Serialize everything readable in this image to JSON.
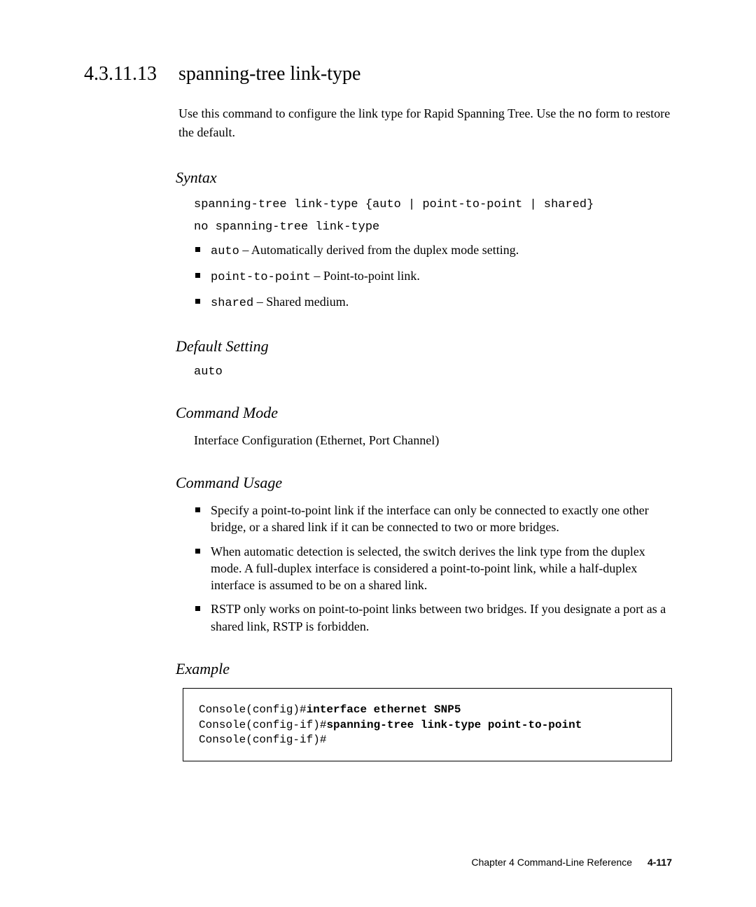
{
  "heading": {
    "number": "4.3.11.13",
    "title": "spanning-tree link-type"
  },
  "intro": {
    "pre": "Use this command to configure the link type for Rapid Spanning Tree. Use the ",
    "code": "no",
    "post": " form to restore the default."
  },
  "syntax": {
    "label": "Syntax",
    "line1_pre": "spanning-tree link-type",
    "line1_post": " {auto | point-to-point | shared}",
    "line2": "no spanning-tree link-type",
    "items": {
      "i0_code": "auto",
      "i0_text": " – Automatically derived from the duplex mode setting.",
      "i1_code": "point-to-point",
      "i1_text": " – Point-to-point link.",
      "i2_code": "shared",
      "i2_text": " – Shared medium."
    }
  },
  "default": {
    "label": "Default Setting",
    "value": "auto"
  },
  "mode": {
    "label": "Command Mode",
    "text": "Interface Configuration (Ethernet, Port Channel)"
  },
  "usage": {
    "label": "Command Usage",
    "u0": "Specify a point-to-point link if the interface can only be connected to exactly one other bridge, or a shared link if it can be connected to two or more bridges.",
    "u1": "When automatic detection is selected, the switch derives the link type from the duplex mode. A full-duplex interface is considered a point-to-point link, while a half-duplex interface is assumed to be on a shared link.",
    "u2": "RSTP only works on point-to-point links between two bridges. If you designate a port as a shared link, RSTP is forbidden."
  },
  "example": {
    "label": "Example",
    "l1_prompt": "Console(config)#",
    "l1_cmd": "interface ethernet SNP5",
    "l2_prompt": "Console(config-if)#",
    "l2_cmd": "spanning-tree link-type point-to-point",
    "l3_prompt": "Console(config-if)#"
  },
  "footer": {
    "chapter": "Chapter 4   Command-Line Reference",
    "page": "4-117"
  }
}
